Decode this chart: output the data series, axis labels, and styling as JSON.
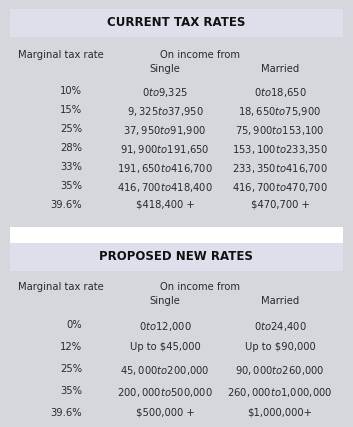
{
  "title1": "CURRENT TAX RATES",
  "title2": "PROPOSED NEW RATES",
  "col_header_left": "Marginal tax rate",
  "col_header_mid": "On income from",
  "col_header_single": "Single",
  "col_header_married": "Married",
  "current_rates": [
    [
      "10%",
      "$0 to $9,325",
      "$0 to $18,650"
    ],
    [
      "15%",
      "$9,325 to $37,950",
      "$18,650 to $75,900"
    ],
    [
      "25%",
      "$37,950 to $91,900",
      "$75,900 to $153,100"
    ],
    [
      "28%",
      "$91,900 to $191,650",
      "$153,100 to $233,350"
    ],
    [
      "33%",
      "$191,650 to $416,700",
      "$233,350 to $416,700"
    ],
    [
      "35%",
      "$416,700 to $418,400",
      "$416,700 to $470,700"
    ],
    [
      "39.6%",
      "$418,400 +",
      "$470,700 +"
    ]
  ],
  "proposed_rates": [
    [
      "0%",
      "$0 to $12,000",
      "$0 to $24,400"
    ],
    [
      "12%",
      "Up to $45,000",
      "Up to $90,000"
    ],
    [
      "25%",
      "$45,000 to $200,000",
      "$90,000 to $260,000"
    ],
    [
      "35%",
      "$200,000 to $500,000",
      "$260,000 to $1,000,000"
    ],
    [
      "39.6%",
      "$500,000 +",
      "$1,000,000+"
    ]
  ],
  "bg_body": "#d5d7dc",
  "bg_header": "#dde0eb",
  "bg_divider": "#ffffff",
  "text_color": "#2a2a2a",
  "title_color": "#111111"
}
